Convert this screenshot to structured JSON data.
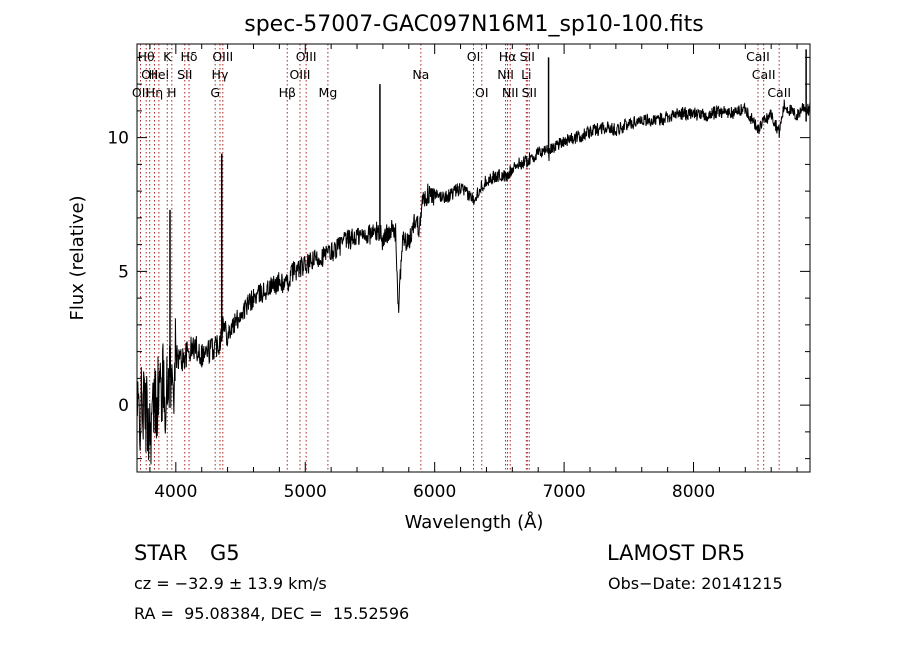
{
  "chart_data": {
    "type": "line",
    "title": "spec-57007-GAC097N16M1_sp10-100.fits",
    "xlabel": "Wavelength (Å)",
    "ylabel": "Flux (relative)",
    "xlim": [
      3700,
      8900
    ],
    "ylim": [
      -2.5,
      13.5
    ],
    "x_ticks": [
      {
        "value": 4000,
        "label": "4000"
      },
      {
        "value": 5000,
        "label": "5000"
      },
      {
        "value": 6000,
        "label": "6000"
      },
      {
        "value": 7000,
        "label": "7000"
      },
      {
        "value": 8000,
        "label": "8000"
      }
    ],
    "y_ticks": [
      {
        "value": 0,
        "label": "0"
      },
      {
        "value": 5,
        "label": "5"
      },
      {
        "value": 10,
        "label": "10"
      }
    ],
    "series": [
      {
        "color": "#000000",
        "x": [
          3700,
          3750,
          3800,
          3850,
          3900,
          3933,
          3950,
          3968,
          4000,
          4050,
          4100,
          4150,
          4200,
          4250,
          4300,
          4340,
          4360,
          4400,
          4450,
          4500,
          4600,
          4700,
          4800,
          4861,
          4900,
          5000,
          5100,
          5200,
          5300,
          5400,
          5500,
          5580,
          5600,
          5650,
          5700,
          5720,
          5750,
          5800,
          5850,
          5880,
          5900,
          5950,
          6000,
          6100,
          6200,
          6300,
          6350,
          6400,
          6450,
          6500,
          6563,
          6600,
          6700,
          6800,
          6870,
          6880,
          6900,
          7000,
          7100,
          7200,
          7300,
          7400,
          7500,
          7600,
          7700,
          7800,
          7900,
          8000,
          8100,
          8200,
          8300,
          8400,
          8498,
          8542,
          8600,
          8662,
          8700,
          8750,
          8800,
          8850,
          8880,
          8900
        ],
        "y": [
          -0.5,
          0.0,
          -0.8,
          0.3,
          0.8,
          0.2,
          1.5,
          0.6,
          1.8,
          1.7,
          2.0,
          2.2,
          1.9,
          2.0,
          2.2,
          2.4,
          3.0,
          2.7,
          3.0,
          3.4,
          4.0,
          4.3,
          4.6,
          4.5,
          5.0,
          5.2,
          5.5,
          5.7,
          6.1,
          6.3,
          6.4,
          6.5,
          6.1,
          6.6,
          6.4,
          3.4,
          6.2,
          6.0,
          7.0,
          6.6,
          7.6,
          7.9,
          7.8,
          7.8,
          8.1,
          7.7,
          8.1,
          8.4,
          8.5,
          8.6,
          8.5,
          8.9,
          9.1,
          9.4,
          9.6,
          9.3,
          9.6,
          9.9,
          10.0,
          10.2,
          10.4,
          10.3,
          10.5,
          10.7,
          10.6,
          10.8,
          10.9,
          10.9,
          10.8,
          11.0,
          10.9,
          11.1,
          10.3,
          10.6,
          10.9,
          10.2,
          11.2,
          11.0,
          10.8,
          11.2,
          11.0,
          11.1
        ]
      }
    ],
    "spikes": [
      {
        "x": 3955,
        "y": 7.3,
        "base": 1.2
      },
      {
        "x": 4355,
        "y": 9.4,
        "base": 2.6
      },
      {
        "x": 5577,
        "y": 12.0,
        "base": 6.2
      },
      {
        "x": 6880,
        "y": 13.0,
        "base": 9.4
      },
      {
        "x": 8870,
        "y": 13.3,
        "base": 10.6
      }
    ],
    "spectral_lines": [
      {
        "x": 3727,
        "label": "OII",
        "row": 3
      },
      {
        "x": 3771,
        "label": "Hθ",
        "row": 1
      },
      {
        "x": 3798,
        "label": "OII",
        "row": 2
      },
      {
        "x": 3835,
        "label": "Hη",
        "row": 3
      },
      {
        "x": 3869,
        "label": "HeI",
        "row": 2
      },
      {
        "x": 3934,
        "label": "K",
        "row": 1
      },
      {
        "x": 3969,
        "label": "H",
        "row": 3
      },
      {
        "x": 4069,
        "label": "SII",
        "row": 2
      },
      {
        "x": 4102,
        "label": "Hδ",
        "row": 1
      },
      {
        "x": 4304,
        "label": "G",
        "row": 3
      },
      {
        "x": 4341,
        "label": "Hγ",
        "row": 2
      },
      {
        "x": 4363,
        "label": "OIII",
        "row": 1
      },
      {
        "x": 4861,
        "label": "Hβ",
        "row": 3
      },
      {
        "x": 4959,
        "label": "OIII",
        "row": 2
      },
      {
        "x": 5007,
        "label": "OIII",
        "row": 1
      },
      {
        "x": 5175,
        "label": "Mg",
        "row": 3
      },
      {
        "x": 5893,
        "label": "Na",
        "row": 2
      },
      {
        "x": 6300,
        "label": "OI",
        "row": 1
      },
      {
        "x": 6364,
        "label": "OI",
        "row": 3
      },
      {
        "x": 6548,
        "label": "NII",
        "row": 2
      },
      {
        "x": 6563,
        "label": "Hα",
        "row": 1
      },
      {
        "x": 6584,
        "label": "NII",
        "row": 3
      },
      {
        "x": 6708,
        "label": "Li",
        "row": 2
      },
      {
        "x": 6716,
        "label": "SII",
        "row": 1
      },
      {
        "x": 6731,
        "label": "SII",
        "row": 3
      },
      {
        "x": 8498,
        "label": "CaII",
        "row": 1
      },
      {
        "x": 8542,
        "label": "CaII",
        "row": 2
      },
      {
        "x": 8662,
        "label": "CaII",
        "row": 3
      }
    ],
    "line_color": "#b22222",
    "grid": false,
    "legend": "none"
  },
  "info": {
    "object_class": "STAR",
    "subclass": "G5",
    "survey": "LAMOST DR5",
    "cz": "cz = −32.9 ± 13.9 km/s",
    "obs_date": "Obs−Date: 20141215",
    "coords": "RA =  95.08384, DEC =  15.52596"
  }
}
